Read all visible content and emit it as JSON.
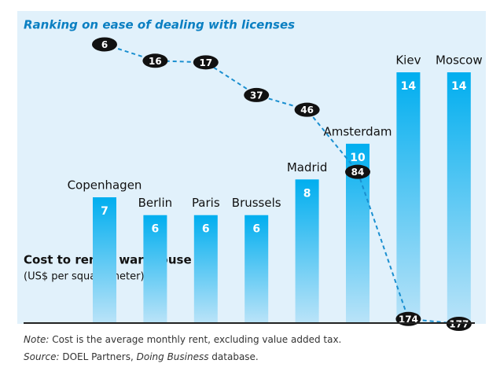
{
  "chart_data": {
    "type": "bar",
    "categories": [
      "Copenhagen",
      "Berlin",
      "Paris",
      "Brussels",
      "Madrid",
      "Amsterdam",
      "Kiev",
      "Moscow"
    ],
    "series": [
      {
        "name": "Cost to rent a warehouse",
        "unit": "(US$ per square meter)",
        "type": "bar",
        "color": "#00aeef",
        "values": [
          7,
          6,
          6,
          6,
          8,
          10,
          14,
          14
        ]
      },
      {
        "name": "Ranking on ease of dealing with licenses",
        "type": "line",
        "axis": "y2",
        "color": "#1a8fd0",
        "values": [
          6,
          16,
          17,
          37,
          46,
          84,
          174,
          177
        ]
      }
    ],
    "note": {
      "label": "Note:",
      "text": " Cost is the average monthly rent, excluding value added tax."
    },
    "source": {
      "label": "Source:",
      "parts": [
        " DOEL Partners, ",
        "Doing Business",
        " database."
      ]
    }
  }
}
